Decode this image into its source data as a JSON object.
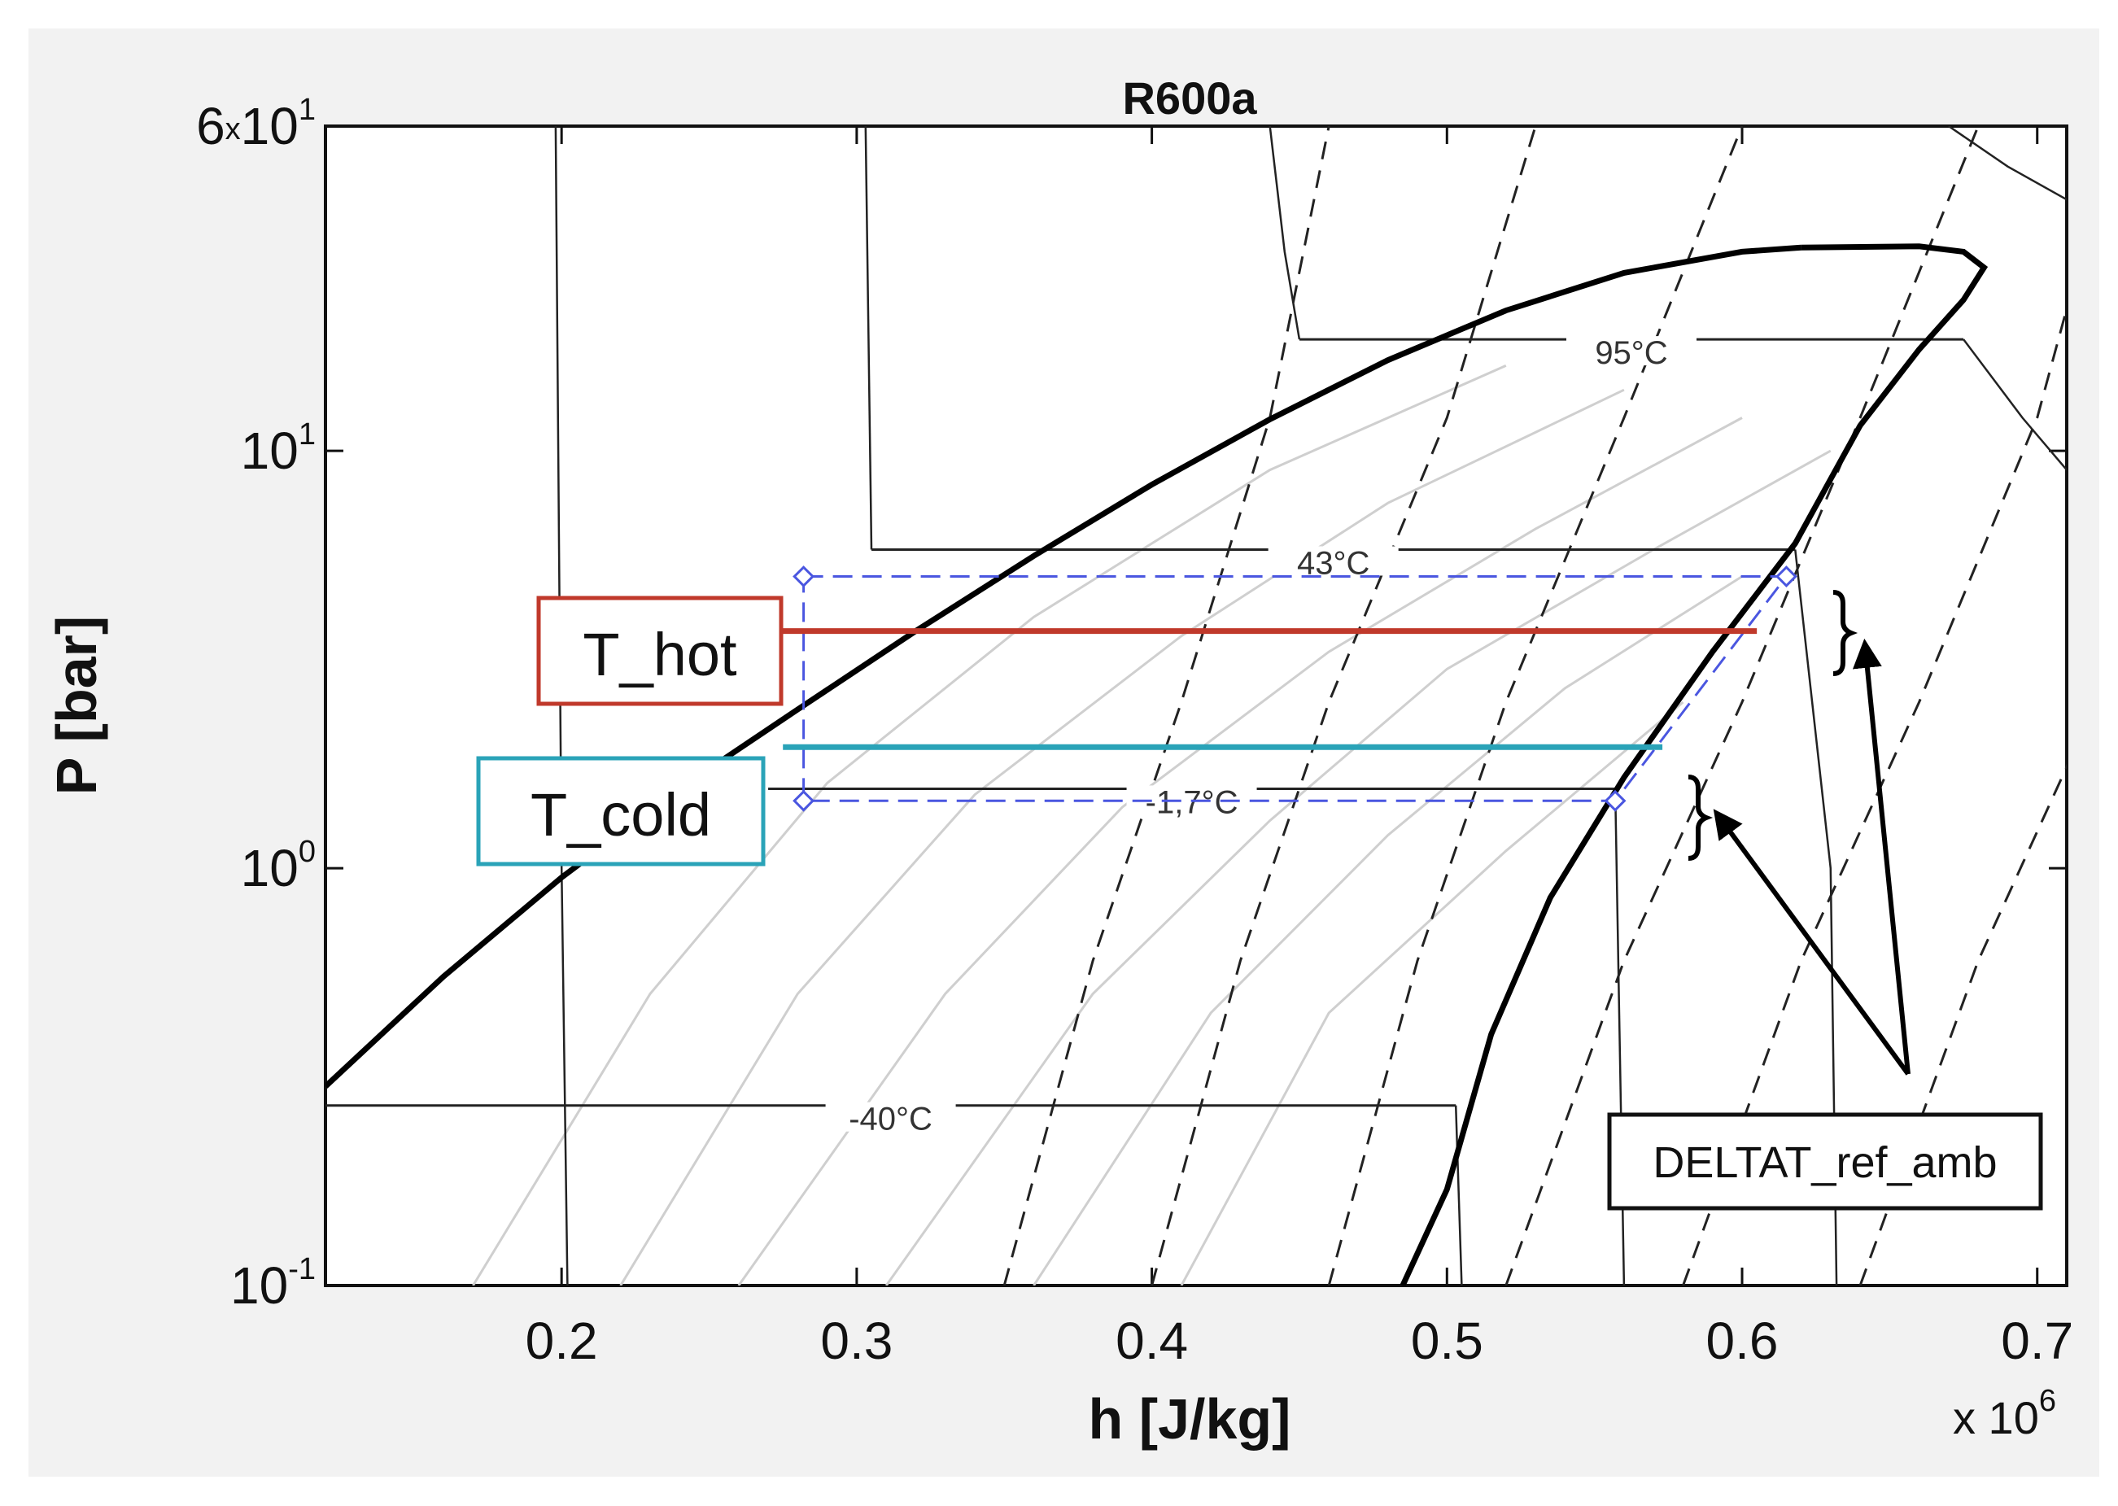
{
  "chart_data": {
    "type": "line",
    "title": "R600a",
    "xlabel": "h [J/kg]",
    "ylabel": "P [bar]",
    "x_multiplier": "x 10",
    "x_multiplier_exp": "6",
    "xlim": [
      0.12,
      0.71
    ],
    "ylim": [
      0.1,
      60
    ],
    "y_scale": "log",
    "x_ticks": [
      "0.2",
      "0.3",
      "0.4",
      "0.5",
      "0.6",
      "0.7"
    ],
    "x_tick_values": [
      0.2,
      0.3,
      0.4,
      0.5,
      0.6,
      0.7
    ],
    "y_ticks": [
      {
        "value": 60,
        "base": "6",
        "sep": "x",
        "mid": "10",
        "exp": "1"
      },
      {
        "value": 10,
        "base": "",
        "sep": "",
        "mid": "10",
        "exp": "1"
      },
      {
        "value": 1,
        "base": "",
        "sep": "",
        "mid": "10",
        "exp": "0"
      },
      {
        "value": 0.1,
        "base": "",
        "sep": "",
        "mid": "10",
        "exp": "-1"
      }
    ],
    "saturation_dome": {
      "liquid": [
        [
          0.12,
          0.3
        ],
        [
          0.16,
          0.55
        ],
        [
          0.2,
          0.95
        ],
        [
          0.24,
          1.55
        ],
        [
          0.28,
          2.4
        ],
        [
          0.32,
          3.7
        ],
        [
          0.36,
          5.6
        ],
        [
          0.4,
          8.3
        ],
        [
          0.44,
          11.9
        ],
        [
          0.48,
          16.5
        ],
        [
          0.52,
          21.7
        ],
        [
          0.56,
          26.7
        ],
        [
          0.6,
          30.0
        ],
        [
          0.62,
          30.7
        ]
      ],
      "vapor": [
        [
          0.62,
          30.7
        ],
        [
          0.66,
          30.9
        ],
        [
          0.675,
          30.0
        ],
        [
          0.682,
          27.5
        ],
        [
          0.675,
          23.0
        ],
        [
          0.66,
          17.5
        ],
        [
          0.64,
          11.5
        ],
        [
          0.618,
          6.0
        ],
        [
          0.59,
          3.3
        ],
        [
          0.56,
          1.65
        ],
        [
          0.535,
          0.85
        ],
        [
          0.515,
          0.4
        ],
        [
          0.5,
          0.17
        ],
        [
          0.485,
          0.1
        ]
      ]
    },
    "isotherms": [
      {
        "label": "95°C",
        "p": 18.5,
        "h_start": 0.45,
        "h_end": 0.675
      },
      {
        "label": "43°C",
        "p": 5.8,
        "h_start": 0.305,
        "h_end": 0.618
      },
      {
        "label": "-1,7°C",
        "p": 1.55,
        "h_start": 0.27,
        "h_end": 0.557
      },
      {
        "label": "-40°C",
        "p": 0.27,
        "h_start": 0.12,
        "h_end": 0.503
      }
    ],
    "cycle": [
      [
        0.282,
        5.0
      ],
      [
        0.615,
        5.0
      ],
      [
        0.557,
        1.45
      ],
      [
        0.282,
        1.45
      ]
    ],
    "T_hot_level": {
      "p": 3.7,
      "h_start": 0.275,
      "h_end": 0.605,
      "color": "#c0392b"
    },
    "T_cold_level": {
      "p": 1.95,
      "h_start": 0.275,
      "h_end": 0.573,
      "color": "#2aa3b8"
    },
    "annotations": {
      "T_hot": {
        "text": "T_hot",
        "color": "#c0392b"
      },
      "T_cold": {
        "text": "T_cold",
        "color": "#2aa3b8"
      },
      "DELTAT": {
        "text": "DELTAT_ref_amb",
        "color": "#111111"
      }
    },
    "grid": false
  }
}
